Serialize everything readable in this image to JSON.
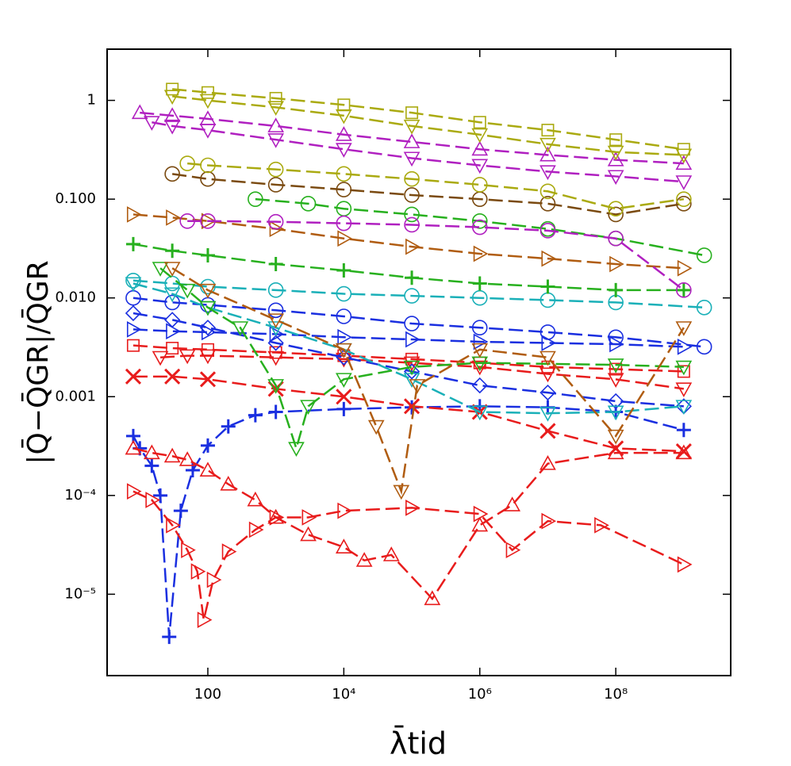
{
  "chart_data": {
    "type": "line",
    "xlabel": "λ̄tid",
    "ylabel": "|Q̄−Q̄GR|/Q̄GR",
    "xscale": "log",
    "yscale": "log",
    "xlim": [
      3.3,
      4900000000
    ],
    "ylim": [
      1.5e-06,
      3.3
    ],
    "xticks": [
      100,
      {
        "value": 10000,
        "label": "10⁴"
      },
      {
        "value": 1000000,
        "label": "10⁶"
      },
      {
        "value": 100000000,
        "label": "10⁸"
      }
    ],
    "yticks": [
      1,
      {
        "value": 0.1,
        "label": "0.100"
      },
      {
        "value": 0.01,
        "label": "0.010"
      },
      0.001,
      {
        "value": 0.0001,
        "label": "10⁻⁴"
      },
      {
        "value": 1e-05,
        "label": "10⁻⁵"
      }
    ],
    "series": [
      {
        "color": "#1a2fe0",
        "marker": "plus",
        "x": [
          8,
          10,
          15,
          20,
          27,
          40,
          60,
          100,
          200,
          500,
          1000,
          10000,
          100000,
          1000000,
          10000000,
          100000000,
          1000000000
        ],
        "values": [
          0.0004,
          0.0003,
          0.0002,
          0.0001,
          3.7e-06,
          7e-05,
          0.00018,
          0.00032,
          0.0005,
          0.00065,
          0.0007,
          0.00075,
          0.00078,
          0.0008,
          0.00078,
          0.0007,
          0.00046
        ]
      },
      {
        "color": "#e81c1c",
        "marker": "tri-up",
        "x": [
          8,
          15,
          30,
          50,
          100,
          200,
          500,
          1000,
          3000,
          10000,
          20000,
          50000,
          200000,
          1000000,
          3000000,
          10000000,
          100000000,
          1000000000
        ],
        "values": [
          0.0003,
          0.00027,
          0.00025,
          0.00023,
          0.00018,
          0.00013,
          9e-05,
          6e-05,
          4e-05,
          3e-05,
          2.2e-05,
          2.5e-05,
          9e-06,
          5e-05,
          8e-05,
          0.00021,
          0.00027,
          0.00027
        ]
      },
      {
        "color": "#e81c1c",
        "marker": "tri-right",
        "x": [
          8,
          15,
          30,
          50,
          70,
          87,
          120,
          200,
          500,
          1000,
          3000,
          10000,
          100000,
          1000000,
          3000000,
          10000000,
          60000000,
          1000000000
        ],
        "values": [
          0.00011,
          9e-05,
          5e-05,
          2.8e-05,
          1.7e-05,
          5.5e-06,
          1.4e-05,
          2.7e-05,
          4.5e-05,
          6e-05,
          6e-05,
          7e-05,
          7.5e-05,
          6.5e-05,
          2.8e-05,
          5.5e-05,
          5e-05,
          2e-05
        ]
      },
      {
        "color": "#e81c1c",
        "marker": "x",
        "x": [
          8,
          30,
          100,
          1000,
          10000,
          100000,
          1000000,
          10000000,
          100000000,
          1000000000
        ],
        "values": [
          0.0016,
          0.0016,
          0.0015,
          0.0012,
          0.001,
          0.0008,
          0.0007,
          0.00045,
          0.0003,
          0.00028
        ]
      },
      {
        "color": "#e81c1c",
        "marker": "square",
        "x": [
          8,
          30,
          100,
          1000,
          10000,
          100000,
          1000000,
          10000000,
          100000000,
          1000000000
        ],
        "values": [
          0.0033,
          0.0031,
          0.003,
          0.0028,
          0.0026,
          0.0024,
          0.0022,
          0.002,
          0.0019,
          0.0018
        ]
      },
      {
        "color": "#e81c1c",
        "marker": "tri-down",
        "x": [
          20,
          50,
          100,
          1000,
          10000,
          100000,
          1000000,
          10000000,
          100000000,
          1000000000
        ],
        "values": [
          0.0025,
          0.0026,
          0.0026,
          0.0025,
          0.0024,
          0.0022,
          0.002,
          0.0017,
          0.0015,
          0.0012
        ]
      },
      {
        "color": "#1a2fe0",
        "marker": "tri-right",
        "x": [
          8,
          30,
          100,
          1000,
          10000,
          100000,
          1000000,
          10000000,
          100000000,
          1000000000
        ],
        "values": [
          0.0048,
          0.0046,
          0.0045,
          0.0043,
          0.004,
          0.0038,
          0.0036,
          0.0035,
          0.0034,
          0.0032
        ]
      },
      {
        "color": "#1a2fe0",
        "marker": "diamond",
        "x": [
          8,
          30,
          100,
          1000,
          10000,
          100000,
          1000000,
          10000000,
          100000000,
          1000000000
        ],
        "values": [
          0.007,
          0.006,
          0.005,
          0.0035,
          0.0025,
          0.0018,
          0.0013,
          0.0011,
          0.0009,
          0.0008
        ]
      },
      {
        "color": "#1a2fe0",
        "marker": "circle",
        "x": [
          8,
          30,
          100,
          1000,
          10000,
          100000,
          1000000,
          10000000,
          100000000,
          2000000000
        ],
        "values": [
          0.01,
          0.009,
          0.0085,
          0.0075,
          0.0065,
          0.0055,
          0.005,
          0.0045,
          0.004,
          0.0032
        ]
      },
      {
        "color": "#1ab0b8",
        "marker": "tri-down",
        "x": [
          8,
          30,
          100,
          1000,
          10000,
          100000,
          1000000,
          10000000,
          100000000,
          1000000000
        ],
        "values": [
          0.014,
          0.011,
          0.008,
          0.005,
          0.003,
          0.0015,
          0.0007,
          0.00068,
          0.0007,
          0.0008
        ]
      },
      {
        "color": "#1ab0b8",
        "marker": "circle",
        "x": [
          8,
          30,
          100,
          1000,
          10000,
          100000,
          1000000,
          10000000,
          100000000,
          2000000000
        ],
        "values": [
          0.015,
          0.014,
          0.013,
          0.012,
          0.011,
          0.0105,
          0.01,
          0.0095,
          0.009,
          0.008
        ]
      },
      {
        "color": "#27b01e",
        "marker": "plus",
        "x": [
          8,
          30,
          100,
          1000,
          10000,
          100000,
          1000000,
          10000000,
          100000000,
          1000000000
        ],
        "values": [
          0.035,
          0.03,
          0.027,
          0.022,
          0.019,
          0.016,
          0.014,
          0.013,
          0.012,
          0.012
        ]
      },
      {
        "color": "#27b01e",
        "marker": "tri-down",
        "x": [
          20,
          50,
          100,
          300,
          1000,
          2000,
          3000,
          10000,
          100000,
          1000000,
          100000000,
          1000000000
        ],
        "values": [
          0.02,
          0.012,
          0.008,
          0.005,
          0.0013,
          0.0003,
          0.0008,
          0.0015,
          0.002,
          0.0022,
          0.0021,
          0.002
        ]
      },
      {
        "color": "#b05c10",
        "marker": "tri-down",
        "x": [
          30,
          100,
          1000,
          10000,
          30000,
          70000,
          120000,
          1000000,
          10000000,
          100000000,
          1000000000
        ],
        "values": [
          0.02,
          0.012,
          0.006,
          0.003,
          0.0005,
          0.00011,
          0.0013,
          0.003,
          0.0025,
          0.0004,
          0.005
        ]
      },
      {
        "color": "#b05c10",
        "marker": "tri-right",
        "x": [
          8,
          30,
          100,
          1000,
          10000,
          100000,
          1000000,
          10000000,
          100000000,
          1000000000
        ],
        "values": [
          0.07,
          0.065,
          0.06,
          0.05,
          0.04,
          0.033,
          0.028,
          0.025,
          0.022,
          0.02
        ]
      },
      {
        "color": "#27b01e",
        "marker": "circle",
        "x": [
          500,
          3000,
          10000,
          100000,
          1000000,
          10000000,
          100000000,
          2000000000
        ],
        "values": [
          0.1,
          0.09,
          0.08,
          0.07,
          0.06,
          0.05,
          0.04,
          0.027
        ]
      },
      {
        "color": "#b020c0",
        "marker": "circle",
        "x": [
          50,
          100,
          1000,
          10000,
          100000,
          1000000,
          10000000,
          100000000,
          1000000000
        ],
        "values": [
          0.06,
          0.06,
          0.059,
          0.057,
          0.055,
          0.052,
          0.048,
          0.04,
          0.012
        ]
      },
      {
        "color": "#7a4a10",
        "marker": "circle",
        "x": [
          30,
          100,
          1000,
          10000,
          100000,
          1000000,
          10000000,
          100000000,
          1000000000
        ],
        "values": [
          0.18,
          0.16,
          0.14,
          0.125,
          0.11,
          0.1,
          0.09,
          0.07,
          0.09
        ]
      },
      {
        "color": "#aaaa10",
        "marker": "circle",
        "x": [
          50,
          100,
          1000,
          10000,
          100000,
          1000000,
          10000000,
          100000000,
          1000000000
        ],
        "values": [
          0.23,
          0.22,
          0.2,
          0.18,
          0.16,
          0.14,
          0.12,
          0.08,
          0.1
        ]
      },
      {
        "color": "#b020c0",
        "marker": "tri-down",
        "x": [
          15,
          30,
          100,
          1000,
          10000,
          100000,
          1000000,
          10000000,
          100000000,
          1000000000
        ],
        "values": [
          0.6,
          0.55,
          0.5,
          0.4,
          0.32,
          0.26,
          0.22,
          0.19,
          0.17,
          0.15
        ]
      },
      {
        "color": "#b020c0",
        "marker": "tri-up",
        "x": [
          10,
          30,
          100,
          1000,
          10000,
          100000,
          1000000,
          10000000,
          100000000,
          1000000000
        ],
        "values": [
          0.75,
          0.7,
          0.65,
          0.55,
          0.45,
          0.38,
          0.32,
          0.28,
          0.25,
          0.23
        ]
      },
      {
        "color": "#aaaa10",
        "marker": "square",
        "x": [
          30,
          100,
          1000,
          10000,
          100000,
          1000000,
          10000000,
          100000000,
          1000000000
        ],
        "values": [
          1.3,
          1.2,
          1.05,
          0.9,
          0.75,
          0.6,
          0.5,
          0.4,
          0.32
        ]
      },
      {
        "color": "#aaaa10",
        "marker": "tri-down",
        "x": [
          30,
          100,
          1000,
          10000,
          100000,
          1000000,
          10000000,
          100000000,
          1000000000
        ],
        "values": [
          1.1,
          1,
          0.85,
          0.7,
          0.55,
          0.45,
          0.36,
          0.3,
          0.28
        ]
      }
    ]
  }
}
